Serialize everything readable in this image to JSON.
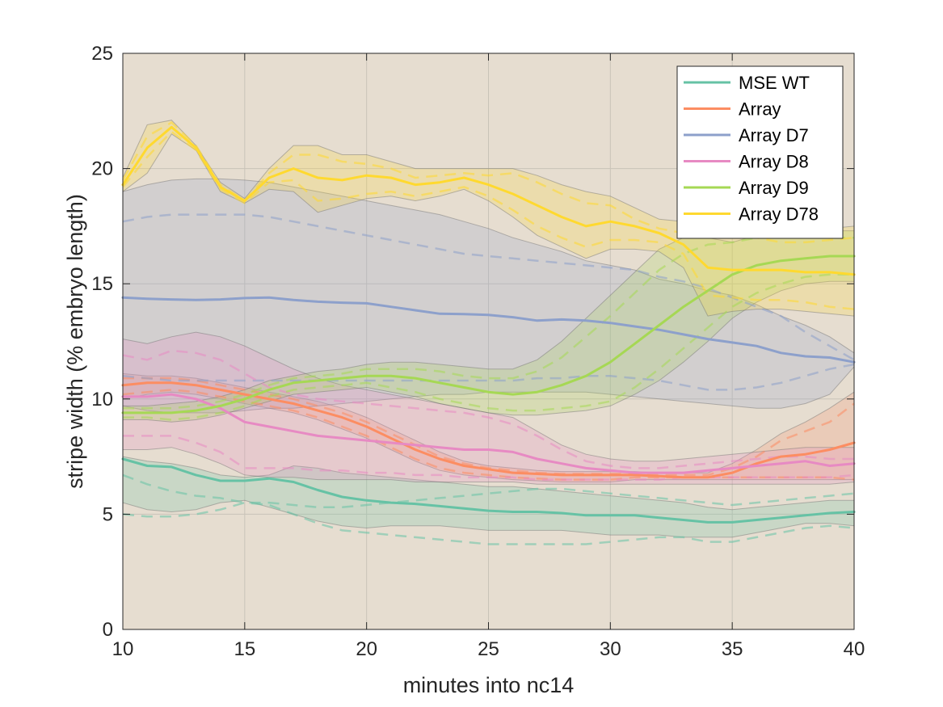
{
  "chart_data": {
    "type": "line",
    "xlabel": "minutes into nc14",
    "ylabel": "stripe width (% embryo length)",
    "xlim": [
      10,
      40
    ],
    "ylim": [
      0,
      25
    ],
    "xticks": [
      10,
      15,
      20,
      25,
      30,
      35,
      40
    ],
    "yticks": [
      0,
      5,
      10,
      15,
      20,
      25
    ],
    "grid": true,
    "legend_position": "top-right",
    "background_color": "#e6ddd0",
    "series": [
      {
        "name": "MSE WT",
        "color": "#66c2a5",
        "x": [
          10,
          11,
          12,
          13,
          14,
          15,
          16,
          17,
          18,
          19,
          20,
          21,
          22,
          23,
          24,
          25,
          26,
          27,
          28,
          29,
          30,
          31,
          32,
          33,
          34,
          35,
          36,
          37,
          38,
          39,
          40
        ],
        "mean": [
          7.4,
          7.1,
          7.05,
          6.7,
          6.45,
          6.45,
          6.55,
          6.4,
          6.05,
          5.75,
          5.6,
          5.5,
          5.45,
          5.35,
          5.25,
          5.15,
          5.1,
          5.1,
          5.05,
          4.95,
          4.95,
          4.95,
          4.85,
          4.75,
          4.65,
          4.65,
          4.75,
          4.85,
          4.95,
          5.05,
          5.1
        ],
        "upper": [
          7.5,
          7.3,
          7.2,
          7.0,
          6.7,
          6.6,
          6.7,
          7.1,
          7.0,
          6.8,
          6.7,
          6.6,
          6.5,
          6.4,
          6.3,
          6.2,
          6.2,
          6.1,
          6.0,
          5.9,
          5.8,
          5.7,
          5.6,
          5.5,
          5.3,
          5.2,
          5.3,
          5.4,
          5.5,
          5.6,
          5.6
        ],
        "lower": [
          5.5,
          5.2,
          5.1,
          5.2,
          5.5,
          5.6,
          5.3,
          5.0,
          4.7,
          4.5,
          4.4,
          4.5,
          4.5,
          4.5,
          4.4,
          4.3,
          4.3,
          4.3,
          4.3,
          4.2,
          4.1,
          4.1,
          4.1,
          4.0,
          4.0,
          4.0,
          4.2,
          4.4,
          4.6,
          4.6,
          4.5
        ],
        "dash_a": [
          6.7,
          6.3,
          6.0,
          5.8,
          5.7,
          5.5,
          5.5,
          5.4,
          5.3,
          5.3,
          5.4,
          5.5,
          5.6,
          5.7,
          5.8,
          5.9,
          6.0,
          6.1,
          6.1,
          6.0,
          5.9,
          5.8,
          5.7,
          5.6,
          5.5,
          5.4,
          5.5,
          5.6,
          5.7,
          5.8,
          5.9
        ],
        "dash_b": [
          5.0,
          4.9,
          4.9,
          5.0,
          5.2,
          5.5,
          5.4,
          5.0,
          4.6,
          4.3,
          4.2,
          4.1,
          4.0,
          3.9,
          3.8,
          3.7,
          3.7,
          3.7,
          3.7,
          3.7,
          3.8,
          3.9,
          4.0,
          4.0,
          3.8,
          3.8,
          4.0,
          4.2,
          4.4,
          4.5,
          4.4
        ]
      },
      {
        "name": "Array",
        "color": "#fc8d62",
        "x": [
          10,
          11,
          12,
          13,
          14,
          15,
          16,
          17,
          18,
          19,
          20,
          21,
          22,
          23,
          24,
          25,
          26,
          27,
          28,
          29,
          30,
          31,
          32,
          33,
          34,
          35,
          36,
          37,
          38,
          39,
          40
        ],
        "mean": [
          10.6,
          10.7,
          10.7,
          10.6,
          10.4,
          10.2,
          10.0,
          9.8,
          9.5,
          9.2,
          8.8,
          8.3,
          7.8,
          7.4,
          7.1,
          6.95,
          6.8,
          6.75,
          6.7,
          6.7,
          6.7,
          6.7,
          6.65,
          6.6,
          6.6,
          6.8,
          7.2,
          7.5,
          7.6,
          7.8,
          8.1
        ],
        "upper": [
          11.1,
          11.0,
          11.0,
          10.9,
          10.7,
          10.5,
          10.3,
          10.1,
          9.9,
          9.6,
          9.2,
          8.7,
          8.2,
          7.7,
          7.3,
          7.1,
          7.0,
          6.9,
          6.85,
          6.85,
          6.85,
          6.85,
          6.8,
          6.8,
          6.8,
          7.2,
          7.8,
          8.5,
          9.0,
          9.6,
          10.3
        ],
        "lower": [
          10.0,
          10.2,
          10.3,
          10.2,
          10.0,
          9.8,
          9.6,
          9.4,
          9.1,
          8.7,
          8.3,
          7.8,
          7.3,
          6.9,
          6.7,
          6.6,
          6.5,
          6.45,
          6.4,
          6.4,
          6.4,
          6.5,
          6.5,
          6.5,
          6.5,
          6.5,
          6.5,
          6.5,
          6.5,
          6.5,
          6.5
        ],
        "dash_a": [
          10.9,
          10.9,
          10.9,
          10.8,
          10.6,
          10.4,
          10.2,
          10.0,
          9.7,
          9.4,
          9.0,
          8.5,
          8.0,
          7.5,
          7.2,
          7.0,
          6.9,
          6.8,
          6.75,
          6.75,
          6.75,
          6.75,
          6.7,
          6.7,
          6.7,
          7.0,
          7.5,
          8.2,
          8.6,
          9.0,
          9.8
        ],
        "dash_b": [
          10.2,
          10.3,
          10.4,
          10.3,
          10.1,
          9.9,
          9.7,
          9.5,
          9.2,
          8.8,
          8.4,
          7.9,
          7.4,
          7.0,
          6.8,
          6.7,
          6.6,
          6.55,
          6.5,
          6.5,
          6.5,
          6.6,
          6.6,
          6.6,
          6.6,
          6.6,
          6.6,
          6.6,
          6.6,
          6.6,
          6.5
        ]
      },
      {
        "name": "Array D7",
        "color": "#8da0cb",
        "x": [
          10,
          11,
          12,
          13,
          14,
          15,
          16,
          17,
          18,
          19,
          20,
          21,
          22,
          23,
          24,
          25,
          26,
          27,
          28,
          29,
          30,
          31,
          32,
          33,
          34,
          35,
          36,
          37,
          38,
          39,
          40
        ],
        "mean": [
          14.4,
          14.35,
          14.32,
          14.3,
          14.32,
          14.38,
          14.4,
          14.3,
          14.22,
          14.18,
          14.15,
          14.0,
          13.85,
          13.7,
          13.68,
          13.65,
          13.55,
          13.4,
          13.45,
          13.4,
          13.3,
          13.15,
          13.0,
          12.8,
          12.6,
          12.45,
          12.3,
          12.0,
          11.85,
          11.8,
          11.6
        ],
        "upper": [
          19.0,
          19.3,
          19.5,
          19.55,
          19.55,
          19.5,
          19.4,
          19.2,
          19.0,
          18.8,
          18.6,
          18.4,
          18.2,
          18.0,
          17.7,
          17.4,
          17.0,
          16.7,
          16.4,
          16.0,
          15.8,
          15.6,
          15.2,
          15.0,
          14.7,
          14.5,
          14.1,
          13.6,
          13.2,
          12.7,
          12.0
        ],
        "lower": [
          9.7,
          9.5,
          9.4,
          9.4,
          9.4,
          9.5,
          9.6,
          9.6,
          9.7,
          9.8,
          9.9,
          10.0,
          10.1,
          10.2,
          10.2,
          10.3,
          10.3,
          10.3,
          10.3,
          10.3,
          10.2,
          10.1,
          10.0,
          9.9,
          9.8,
          9.7,
          9.6,
          9.6,
          9.8,
          10.2,
          11.4
        ],
        "dash_a": [
          17.7,
          17.9,
          18.0,
          18.0,
          18.0,
          18.0,
          17.9,
          17.7,
          17.5,
          17.3,
          17.1,
          16.9,
          16.7,
          16.5,
          16.3,
          16.2,
          16.1,
          16.0,
          15.9,
          15.8,
          15.7,
          15.6,
          15.3,
          15.1,
          14.8,
          14.4,
          14.0,
          13.6,
          12.9,
          12.3,
          11.7
        ],
        "dash_b": [
          11.0,
          10.9,
          10.8,
          10.8,
          10.8,
          10.8,
          10.8,
          10.8,
          10.8,
          10.8,
          10.8,
          10.8,
          10.8,
          10.8,
          10.8,
          10.8,
          10.8,
          10.9,
          10.9,
          11.0,
          11.0,
          10.9,
          10.8,
          10.6,
          10.4,
          10.4,
          10.5,
          10.7,
          11.0,
          11.3,
          11.5
        ]
      },
      {
        "name": "Array D8",
        "color": "#e78ac3",
        "x": [
          10,
          11,
          12,
          13,
          14,
          15,
          16,
          17,
          18,
          19,
          20,
          21,
          22,
          23,
          24,
          25,
          26,
          27,
          28,
          29,
          30,
          31,
          32,
          33,
          34,
          35,
          36,
          37,
          38,
          39,
          40
        ],
        "mean": [
          10.1,
          10.1,
          10.2,
          10.0,
          9.6,
          9.0,
          8.8,
          8.6,
          8.4,
          8.3,
          8.2,
          8.1,
          8.0,
          7.9,
          7.8,
          7.8,
          7.7,
          7.4,
          7.2,
          7.0,
          6.9,
          6.8,
          6.8,
          6.8,
          6.9,
          7.0,
          7.1,
          7.2,
          7.3,
          7.1,
          7.2
        ],
        "upper": [
          12.6,
          12.4,
          12.7,
          12.9,
          12.7,
          12.3,
          11.8,
          11.3,
          10.9,
          10.6,
          10.4,
          10.2,
          10.0,
          9.8,
          9.6,
          9.4,
          9.2,
          8.6,
          8.0,
          7.6,
          7.4,
          7.3,
          7.3,
          7.4,
          7.5,
          7.6,
          7.7,
          7.8,
          7.9,
          7.9,
          7.9
        ],
        "lower": [
          7.8,
          7.8,
          7.9,
          7.6,
          7.2,
          6.7,
          6.6,
          6.6,
          6.5,
          6.5,
          6.5,
          6.5,
          6.4,
          6.4,
          6.4,
          6.4,
          6.4,
          6.3,
          6.3,
          6.3,
          6.3,
          6.3,
          6.3,
          6.3,
          6.3,
          6.3,
          6.3,
          6.3,
          6.3,
          6.3,
          6.4
        ],
        "dash_a": [
          11.9,
          11.7,
          12.1,
          12.0,
          11.7,
          11.1,
          10.5,
          10.2,
          10.0,
          9.9,
          9.8,
          9.7,
          9.6,
          9.5,
          9.4,
          9.2,
          8.9,
          8.4,
          7.8,
          7.3,
          7.1,
          7.0,
          7.0,
          7.1,
          7.2,
          7.3,
          7.4,
          7.5,
          7.5,
          7.4,
          7.4
        ],
        "dash_b": [
          8.4,
          8.4,
          8.4,
          8.1,
          7.7,
          7.0,
          7.0,
          7.0,
          6.9,
          6.9,
          6.8,
          6.8,
          6.7,
          6.7,
          6.6,
          6.6,
          6.6,
          6.5,
          6.5,
          6.5,
          6.5,
          6.5,
          6.5,
          6.6,
          6.6,
          6.6,
          6.6,
          6.6,
          6.6,
          6.6,
          6.7
        ]
      },
      {
        "name": "Array D9",
        "color": "#a6d854",
        "x": [
          10,
          11,
          12,
          13,
          14,
          15,
          16,
          17,
          18,
          19,
          20,
          21,
          22,
          23,
          24,
          25,
          26,
          27,
          28,
          29,
          30,
          31,
          32,
          33,
          34,
          35,
          36,
          37,
          38,
          39,
          40
        ],
        "mean": [
          9.4,
          9.4,
          9.4,
          9.5,
          9.7,
          10.0,
          10.4,
          10.7,
          10.8,
          10.9,
          11.0,
          11.0,
          10.9,
          10.7,
          10.5,
          10.3,
          10.2,
          10.3,
          10.6,
          11.0,
          11.6,
          12.4,
          13.2,
          14.0,
          14.7,
          15.4,
          15.8,
          16.0,
          16.1,
          16.2,
          16.2
        ],
        "upper": [
          9.7,
          9.7,
          9.8,
          9.9,
          10.1,
          10.4,
          10.8,
          11.0,
          11.2,
          11.3,
          11.5,
          11.6,
          11.6,
          11.5,
          11.4,
          11.3,
          11.3,
          11.7,
          12.5,
          13.5,
          14.5,
          15.5,
          16.5,
          17.0,
          17.0,
          16.8,
          17.1,
          17.4,
          17.3,
          17.3,
          17.3
        ],
        "lower": [
          9.1,
          9.1,
          9.0,
          9.1,
          9.3,
          9.6,
          9.9,
          10.2,
          10.3,
          10.4,
          10.5,
          10.3,
          10.1,
          9.8,
          9.6,
          9.4,
          9.3,
          9.3,
          9.4,
          9.5,
          9.7,
          10.2,
          10.8,
          11.6,
          12.5,
          13.5,
          14.2,
          14.7,
          15.0,
          15.1,
          15.1
        ],
        "dash_a": [
          9.6,
          9.6,
          9.6,
          9.7,
          9.9,
          10.2,
          10.6,
          10.9,
          11.0,
          11.1,
          11.3,
          11.3,
          11.3,
          11.2,
          11.0,
          10.9,
          10.9,
          11.2,
          11.8,
          12.7,
          13.6,
          14.6,
          15.6,
          16.3,
          16.7,
          16.8,
          17.0,
          17.1,
          17.0,
          17.0,
          17.0
        ],
        "dash_b": [
          9.2,
          9.2,
          9.1,
          9.2,
          9.4,
          9.7,
          10.1,
          10.4,
          10.5,
          10.6,
          10.7,
          10.5,
          10.3,
          10.0,
          9.8,
          9.6,
          9.5,
          9.5,
          9.6,
          9.7,
          9.9,
          10.5,
          11.3,
          12.2,
          13.1,
          14.0,
          14.6,
          15.0,
          15.3,
          15.4,
          15.4
        ]
      },
      {
        "name": "Array D78",
        "color": "#ffd92f",
        "x": [
          10,
          11,
          12,
          13,
          14,
          15,
          16,
          17,
          18,
          19,
          20,
          21,
          22,
          23,
          24,
          25,
          26,
          27,
          28,
          29,
          30,
          31,
          32,
          33,
          34,
          35,
          36,
          37,
          38,
          39,
          40
        ],
        "mean": [
          19.3,
          20.9,
          21.8,
          20.9,
          19.2,
          18.6,
          19.6,
          20.0,
          19.6,
          19.5,
          19.7,
          19.6,
          19.3,
          19.4,
          19.6,
          19.3,
          18.9,
          18.4,
          17.9,
          17.5,
          17.7,
          17.5,
          17.2,
          16.7,
          15.7,
          15.6,
          15.6,
          15.6,
          15.5,
          15.5,
          15.4
        ],
        "upper": [
          19.6,
          21.9,
          22.1,
          21.0,
          19.4,
          18.7,
          20.0,
          21.0,
          21.0,
          20.6,
          20.6,
          20.3,
          20.0,
          20.0,
          20.0,
          20.0,
          20.0,
          19.7,
          19.3,
          19.0,
          18.8,
          18.3,
          17.8,
          17.7,
          17.4,
          17.4,
          17.3,
          17.2,
          17.3,
          17.4,
          17.5
        ],
        "lower": [
          19.0,
          19.8,
          21.5,
          20.8,
          19.0,
          18.5,
          19.1,
          19.0,
          18.1,
          18.4,
          18.7,
          18.8,
          18.6,
          18.8,
          19.1,
          18.6,
          17.9,
          17.1,
          16.6,
          16.1,
          16.5,
          16.5,
          16.4,
          15.7,
          13.6,
          13.8,
          13.9,
          13.9,
          13.8,
          13.7,
          13.6
        ],
        "dash_a": [
          19.5,
          21.4,
          22.0,
          21.0,
          19.3,
          18.6,
          19.8,
          20.6,
          20.6,
          20.3,
          20.2,
          20.0,
          19.6,
          19.7,
          19.8,
          19.7,
          19.8,
          19.4,
          18.9,
          18.5,
          18.4,
          17.8,
          17.4,
          17.2,
          17.2,
          17.2,
          17.0,
          16.8,
          16.8,
          16.9,
          17.0
        ],
        "dash_b": [
          19.2,
          20.5,
          21.6,
          20.8,
          19.1,
          18.5,
          19.4,
          19.5,
          18.6,
          18.7,
          18.9,
          19.0,
          18.8,
          19.0,
          19.2,
          18.8,
          18.2,
          17.5,
          17.0,
          16.6,
          16.9,
          16.9,
          16.8,
          16.3,
          14.5,
          14.4,
          14.3,
          14.3,
          14.2,
          14.0,
          13.9
        ]
      }
    ]
  }
}
